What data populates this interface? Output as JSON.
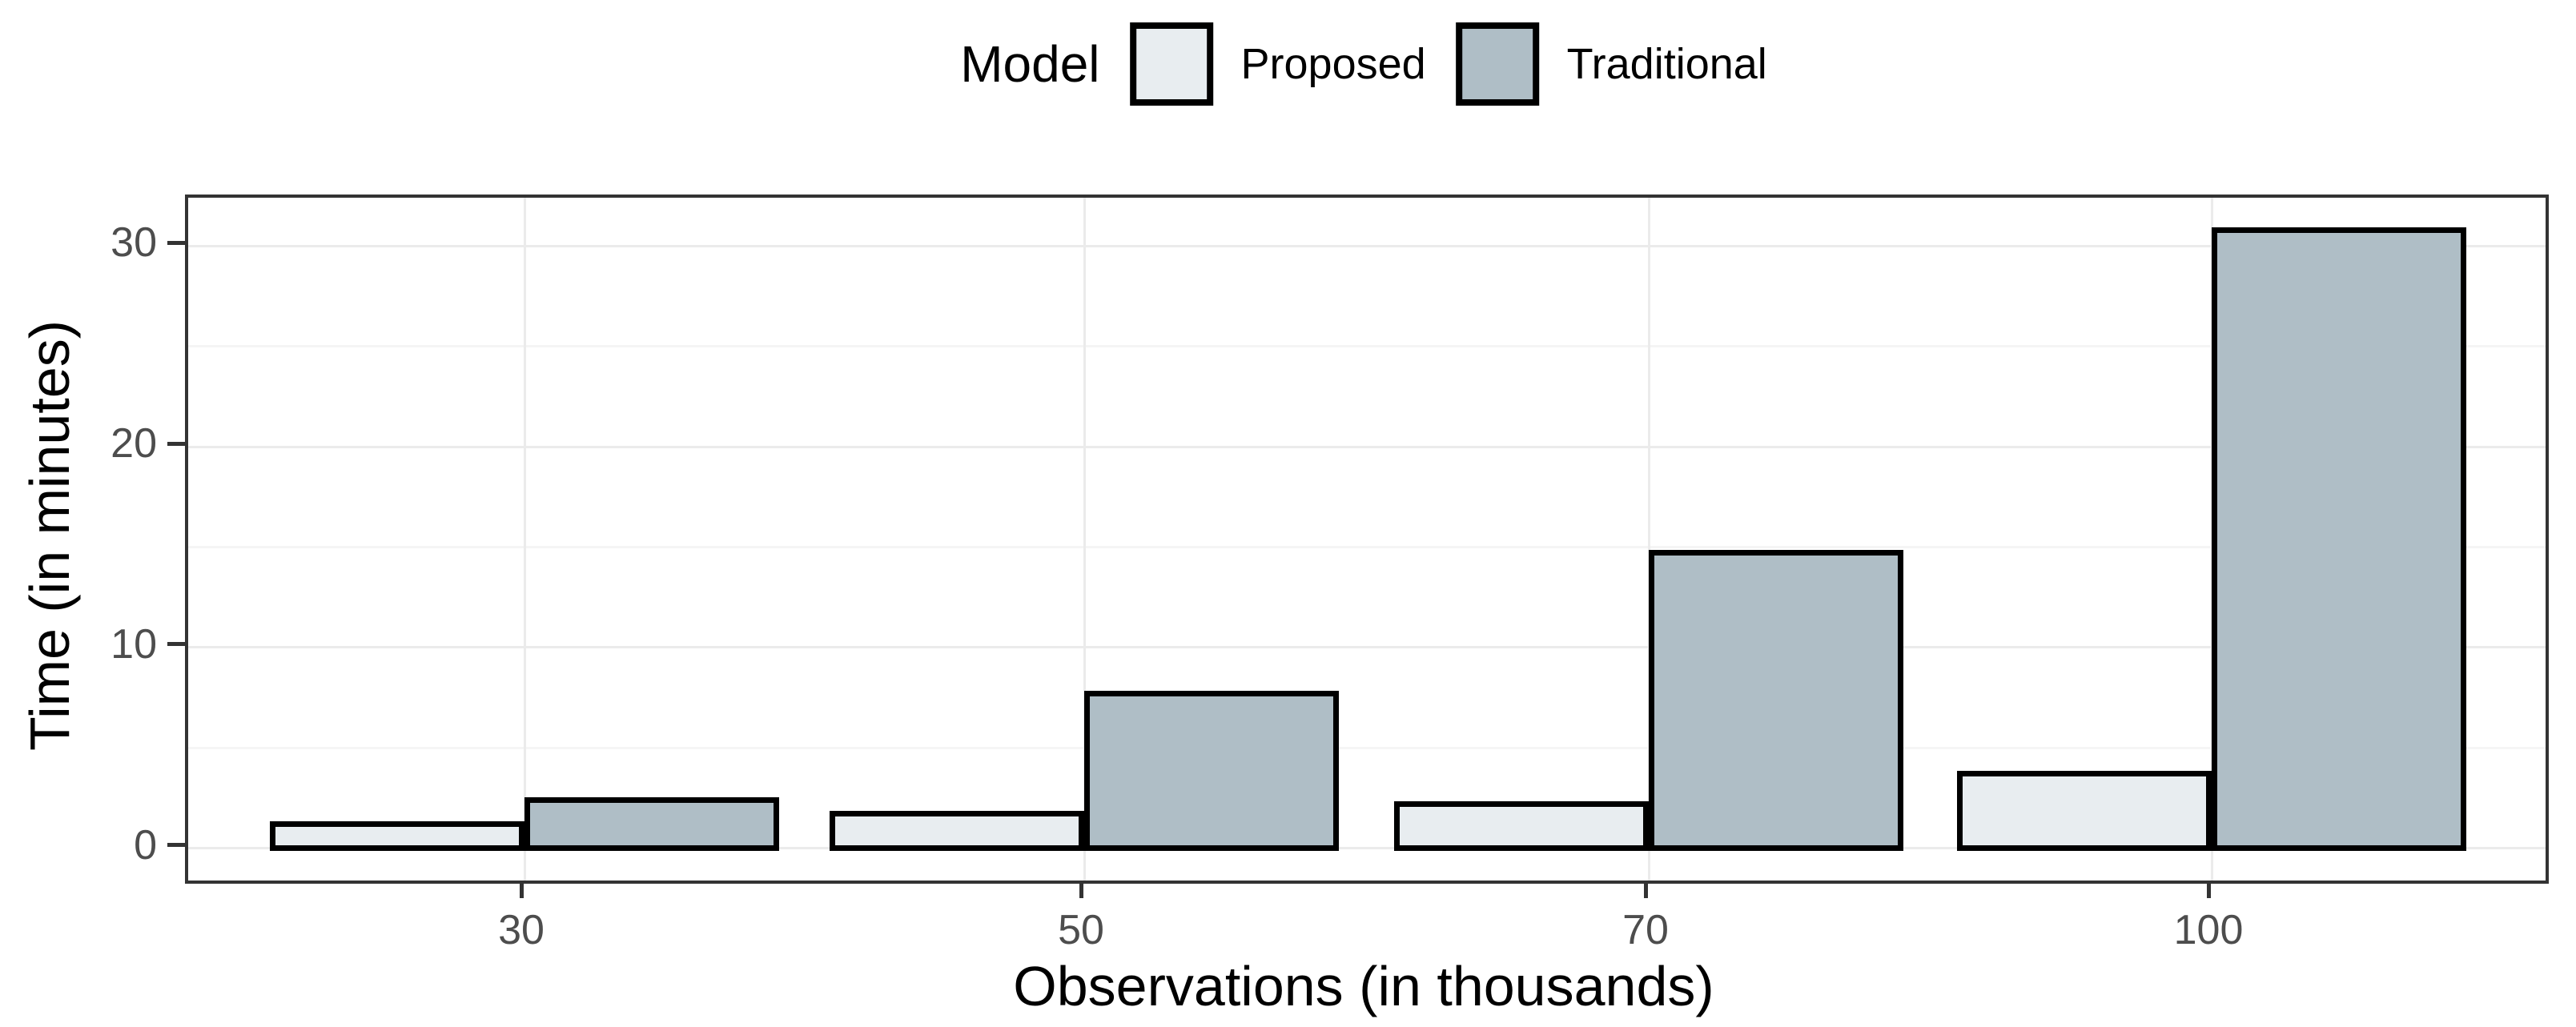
{
  "chart_data": {
    "type": "bar",
    "title": "",
    "legend_title": "Model",
    "legend_position": "top-center",
    "categories": [
      "30",
      "50",
      "70",
      "100"
    ],
    "series": [
      {
        "name": "Proposed",
        "color": "#E8EDF0",
        "values": [
          1.2,
          1.7,
          2.2,
          3.7
        ]
      },
      {
        "name": "Traditional",
        "color": "#AFBEC6",
        "values": [
          2.4,
          7.7,
          14.7,
          30.8
        ]
      }
    ],
    "xlabel": "Observations (in thousands)",
    "ylabel": "Time (in minutes)",
    "ylim": [
      0,
      32.3
    ],
    "yticks": [
      0,
      10,
      20,
      30
    ],
    "yticks_minor": [
      5,
      15,
      25
    ],
    "grid": "horizontal major+minor, vertical major at category centers",
    "style": {
      "bar_stroke": "#000000",
      "panel_border": "#333333",
      "grid_major": "#EBEBEB",
      "grid_minor": "#F5F5F5",
      "tick_label_color": "#4D4D4D",
      "axis_title_color": "#000000",
      "background": "#FFFFFF"
    }
  }
}
